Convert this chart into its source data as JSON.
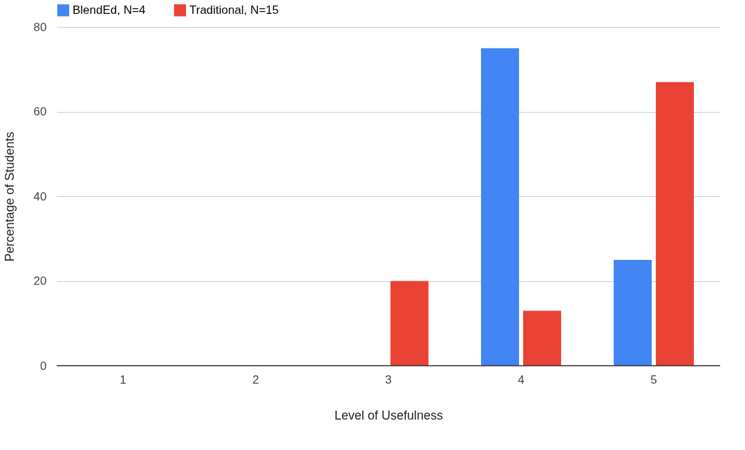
{
  "chart_data": {
    "type": "bar",
    "xlabel": "Level of Usefulness",
    "ylabel": "Percentage of Students",
    "categories": [
      "1",
      "2",
      "3",
      "4",
      "5"
    ],
    "series": [
      {
        "name": "BlendEd, N=4",
        "color": "#4285f4",
        "values": [
          0,
          0,
          0,
          75,
          25
        ]
      },
      {
        "name": "Traditional, N=15",
        "color": "#ea4335",
        "values": [
          0,
          0,
          20,
          13,
          67
        ]
      }
    ],
    "ylim": [
      0,
      80
    ],
    "yticks": [
      0,
      20,
      40,
      60,
      80
    ],
    "grid": "y",
    "legend": "top"
  }
}
